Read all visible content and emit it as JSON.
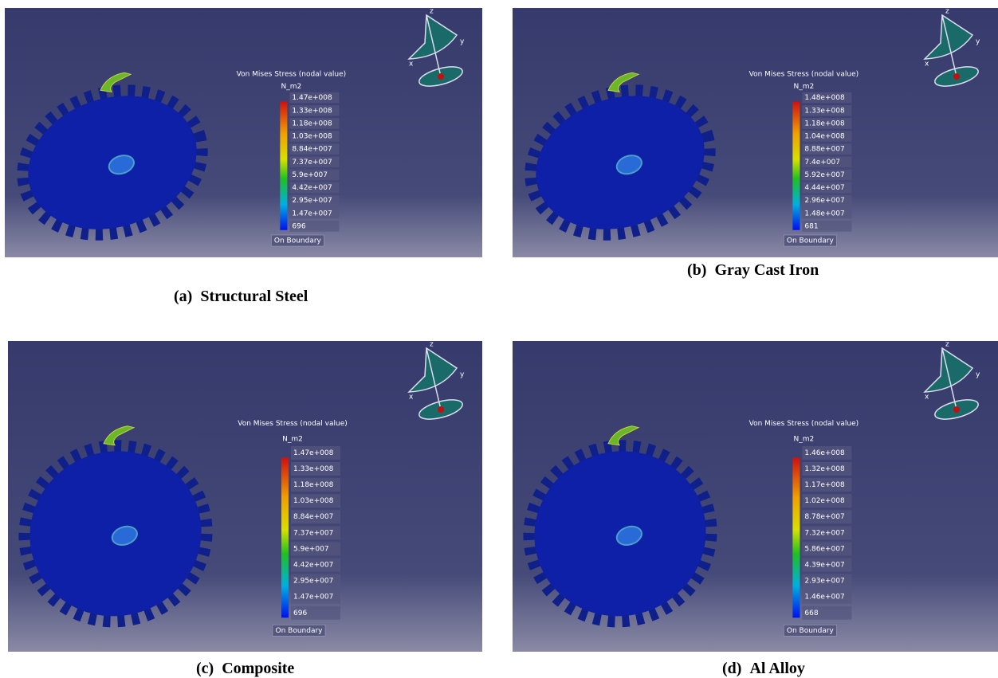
{
  "panels": [
    {
      "label": "(a)",
      "caption": "Structural Steel",
      "legend_title": "Von Mises Stress (nodal value)",
      "unit": "N_m2",
      "ticks": [
        "1.47e+008",
        "1.33e+008",
        "1.18e+008",
        "1.03e+008",
        "8.84e+007",
        "7.37e+007",
        "5.9e+007",
        "4.42e+007",
        "2.95e+007",
        "1.47e+007",
        "696"
      ],
      "boundary": "On Boundary",
      "axes": [
        "z",
        "y",
        "x"
      ]
    },
    {
      "label": "(b)",
      "caption": "Gray Cast Iron",
      "legend_title": "Von Mises Stress (nodal value)",
      "unit": "N_m2",
      "ticks": [
        "1.48e+008",
        "1.33e+008",
        "1.18e+008",
        "1.04e+008",
        "8.88e+007",
        "7.4e+007",
        "5.92e+007",
        "4.44e+007",
        "2.96e+007",
        "1.48e+007",
        "681"
      ],
      "boundary": "On Boundary",
      "axes": [
        "z",
        "y",
        "x"
      ]
    },
    {
      "label": "(c)",
      "caption": "Composite",
      "legend_title": "Von Mises Stress (nodal value)",
      "unit": "N_m2",
      "ticks": [
        "1.47e+008",
        "1.33e+008",
        "1.18e+008",
        "1.03e+008",
        "8.84e+007",
        "7.37e+007",
        "5.9e+007",
        "4.42e+007",
        "2.95e+007",
        "1.47e+007",
        "696"
      ],
      "boundary": "On Boundary",
      "axes": [
        "z",
        "y",
        "x"
      ]
    },
    {
      "label": "(d)",
      "caption": "Al Alloy",
      "legend_title": "Von Mises Stress (nodal value)",
      "unit": "N_m2",
      "ticks": [
        "1.46e+008",
        "1.32e+008",
        "1.17e+008",
        "1.02e+008",
        "8.78e+007",
        "7.32e+007",
        "5.86e+007",
        "4.39e+007",
        "2.93e+007",
        "1.46e+007",
        "668"
      ],
      "boundary": "On Boundary",
      "axes": [
        "z",
        "y",
        "x"
      ]
    }
  ]
}
